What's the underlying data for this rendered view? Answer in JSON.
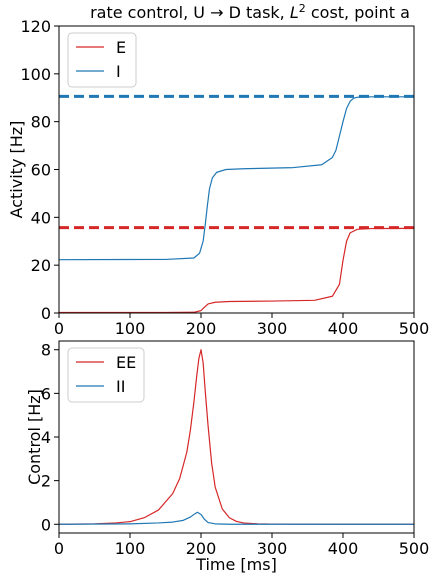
{
  "chart_data": [
    {
      "type": "line",
      "title_parts": {
        "a": "rate control, U ",
        "arrow": "→",
        "b": " D task, ",
        "L": "L",
        "sup": "2",
        "c": " cost,  point a"
      },
      "xlabel": "",
      "ylabel": "Activity [Hz]",
      "xlim": [
        0,
        500
      ],
      "ylim": [
        0,
        120
      ],
      "xticks": [
        0,
        100,
        200,
        300,
        400,
        500
      ],
      "yticks": [
        0,
        20,
        40,
        60,
        80,
        100,
        120
      ],
      "grid": false,
      "legend": "top-left",
      "series": [
        {
          "name": "E",
          "color": "#d62728",
          "x": [
            0,
            150,
            190,
            200,
            205,
            210,
            220,
            240,
            300,
            360,
            385,
            395,
            400,
            405,
            410,
            420,
            440,
            500
          ],
          "y": [
            0.2,
            0.2,
            0.3,
            1.0,
            2.5,
            3.8,
            4.5,
            4.8,
            5.0,
            5.3,
            7.0,
            12.0,
            22.0,
            30.0,
            33.5,
            35.0,
            35.3,
            35.4
          ]
        },
        {
          "name": "I",
          "color": "#1f77b4",
          "x": [
            0,
            150,
            190,
            198,
            203,
            206,
            209,
            212,
            216,
            222,
            235,
            260,
            330,
            370,
            385,
            390,
            395,
            400,
            405,
            410,
            415,
            420,
            440,
            500
          ],
          "y": [
            22.3,
            22.4,
            23.0,
            25.0,
            30.0,
            37.0,
            45.0,
            52.0,
            56.5,
            58.8,
            60.0,
            60.3,
            60.8,
            62.0,
            65.0,
            68.0,
            74.0,
            80.0,
            85.5,
            88.5,
            89.8,
            90.2,
            90.4,
            90.4
          ]
        }
      ],
      "targets": [
        {
          "color": "#d62728",
          "y": 35.7
        },
        {
          "color": "#1f77b4",
          "y": 90.6
        }
      ]
    },
    {
      "type": "line",
      "title": "",
      "xlabel": "Time [ms]",
      "ylabel": "Control [Hz]",
      "xlim": [
        0,
        500
      ],
      "ylim": [
        -0.4,
        8.4
      ],
      "xticks": [
        0,
        100,
        200,
        300,
        400,
        500
      ],
      "yticks": [
        0,
        2,
        4,
        6,
        8
      ],
      "grid": false,
      "legend": "top-left",
      "series": [
        {
          "name": "EE",
          "color": "#d62728",
          "x": [
            0,
            50,
            80,
            100,
            120,
            140,
            160,
            170,
            180,
            185,
            190,
            194,
            197,
            200,
            203,
            206,
            210,
            215,
            220,
            230,
            240,
            250,
            260,
            280,
            300,
            400,
            500
          ],
          "y": [
            0.0,
            0.02,
            0.06,
            0.12,
            0.3,
            0.65,
            1.4,
            2.1,
            3.3,
            4.3,
            5.6,
            6.8,
            7.6,
            8.0,
            7.4,
            6.1,
            4.5,
            2.8,
            1.7,
            0.7,
            0.3,
            0.13,
            0.06,
            0.02,
            0.01,
            0.0,
            0.0
          ]
        },
        {
          "name": "II",
          "color": "#1f77b4",
          "x": [
            0,
            100,
            140,
            160,
            175,
            185,
            190,
            195,
            200,
            205,
            210,
            220,
            240,
            300,
            500
          ],
          "y": [
            0.0,
            0.02,
            0.06,
            0.1,
            0.18,
            0.33,
            0.45,
            0.55,
            0.45,
            0.22,
            0.08,
            0.02,
            0.0,
            0.0,
            0.0
          ]
        }
      ]
    }
  ]
}
